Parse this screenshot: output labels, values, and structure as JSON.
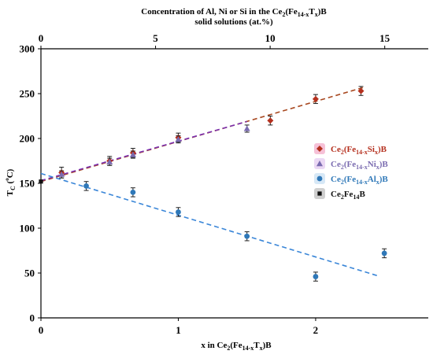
{
  "chart_data": {
    "type": "scatter",
    "top_axis": {
      "title_line1": "Concentration of Al, Ni or Si in the Ce",
      "title_line1_sub": "2",
      "title_line1_tail": "(Fe",
      "title_line1_sub2": "14-x",
      "title_line1_tail2": "T",
      "title_line1_sub3": "x",
      "title_line1_end": ")B",
      "title_line2": "solid solutions (at.%)",
      "xlim": [
        0,
        16.9
      ],
      "ticks": [
        "0",
        "5",
        "10",
        "15"
      ],
      "tick_values": [
        0,
        5,
        10,
        15
      ]
    },
    "x_axis": {
      "label_prefix": "x in Ce",
      "label_sub1": "2",
      "label_mid": "(Fe",
      "label_sub2": "14-x",
      "label_mid2": "T",
      "label_sub3": "x",
      "label_end": ")B",
      "xlim": [
        0,
        2.82
      ],
      "ticks": [
        "0",
        "1",
        "2"
      ],
      "tick_values": [
        0,
        1,
        2
      ]
    },
    "y_axis": {
      "label_main": "T",
      "label_sub": "C",
      "label_unit": " (",
      "label_degree": "o",
      "label_unit_end": "C)",
      "ylim": [
        0,
        300
      ],
      "ticks": [
        "0",
        "50",
        "100",
        "150",
        "200",
        "250",
        "300"
      ],
      "tick_values": [
        0,
        50,
        100,
        150,
        200,
        250,
        300
      ]
    },
    "series": [
      {
        "key": "si",
        "name": "Ce2(Fe14-xSix)B",
        "legend": {
          "a": "Ce",
          "s1": "2",
          "b": "(Fe",
          "s2": "14-x",
          "c": "Si",
          "s3": "x",
          "d": ")B"
        },
        "marker": "diamond",
        "color": "#b5301e",
        "line_color": "#a84820",
        "halo_color": "#f2a6c6",
        "x": [
          0.15,
          0.5,
          0.67,
          1.0,
          1.67,
          2.0,
          2.33
        ],
        "y": [
          162,
          175,
          184,
          201,
          220,
          244,
          253
        ],
        "error": [
          6,
          5,
          5,
          5,
          5,
          5,
          5
        ],
        "fit": [
          [
            0,
            152
          ],
          [
            2.35,
            257
          ]
        ]
      },
      {
        "key": "ni",
        "name": "Ce2(Fe14-xNix)B",
        "legend": {
          "a": "Ce",
          "s1": "2",
          "b": "(Fe",
          "s2": "14-x",
          "c": "Ni",
          "s3": "x",
          "d": ")B"
        },
        "marker": "triangle",
        "color": "#7a6bb0",
        "line_color": "#7a2fb0",
        "halo_color": "#e2c8f0",
        "x": [
          0.15,
          0.5,
          0.67,
          1.0,
          1.5
        ],
        "y": [
          160,
          174,
          182,
          199,
          211
        ],
        "error": [
          4,
          4,
          4,
          4,
          4
        ],
        "fit": [
          [
            0,
            153
          ],
          [
            1.5,
            219
          ]
        ]
      },
      {
        "key": "al",
        "name": "Ce2(Fe14-xAlx)B",
        "legend": {
          "a": "Ce",
          "s1": "2",
          "b": "(Fe",
          "s2": "14-x",
          "c": "Al",
          "s3": "x",
          "d": ")B"
        },
        "marker": "circle",
        "color": "#2f78b8",
        "line_color": "#3a86d8",
        "halo_color": "#c6def2",
        "x": [
          0.33,
          0.67,
          1.0,
          1.5,
          2.0,
          2.5
        ],
        "y": [
          147,
          140,
          118,
          91,
          46,
          72
        ],
        "error": [
          5,
          5,
          5,
          5,
          5,
          5
        ],
        "fit": [
          [
            0,
            161
          ],
          [
            2.45,
            47
          ]
        ]
      },
      {
        "key": "fe",
        "name": "Ce2Fe14B",
        "legend": {
          "a": "Ce",
          "s1": "2",
          "b": "Fe",
          "s2": "14",
          "c": "B",
          "s3": "",
          "d": ""
        },
        "marker": "square",
        "color": "#111111",
        "halo_color": "#bbbbbb",
        "x": [
          0
        ],
        "y": [
          152
        ],
        "error": [
          0
        ],
        "fit": null
      }
    ],
    "legend_position": "right",
    "grid": false
  }
}
